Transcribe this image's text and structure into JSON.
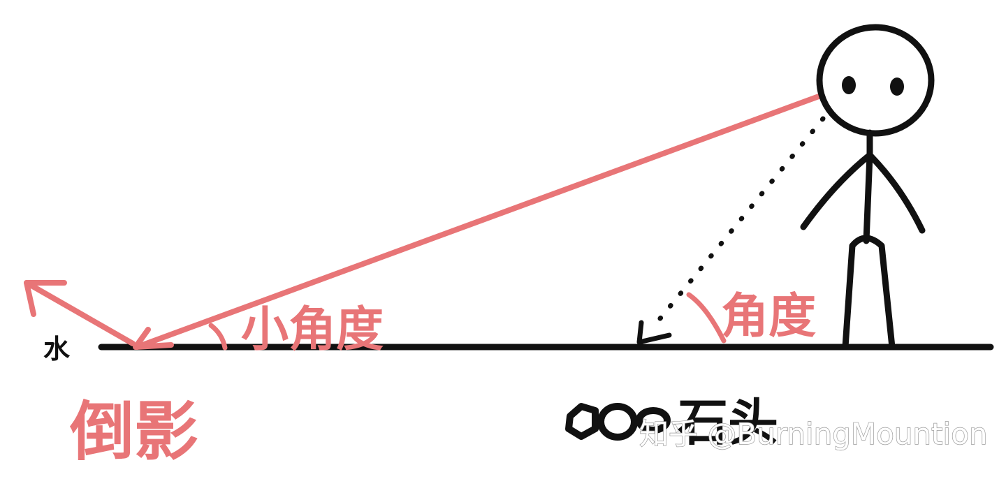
{
  "diagram": {
    "labels": {
      "water": "水",
      "reflection": "倒影",
      "small_angle": "小角度",
      "angle": "角度",
      "stone": "石头"
    },
    "watermark": "知乎 @BurningMountion",
    "colors": {
      "ink": "#111111",
      "light_ray": "#e87577",
      "watermark_outline": "#9b9b9b",
      "background": "#ffffff"
    },
    "icons": {
      "person": "stick-figure",
      "stone": "stone-pebbles-icon"
    }
  }
}
